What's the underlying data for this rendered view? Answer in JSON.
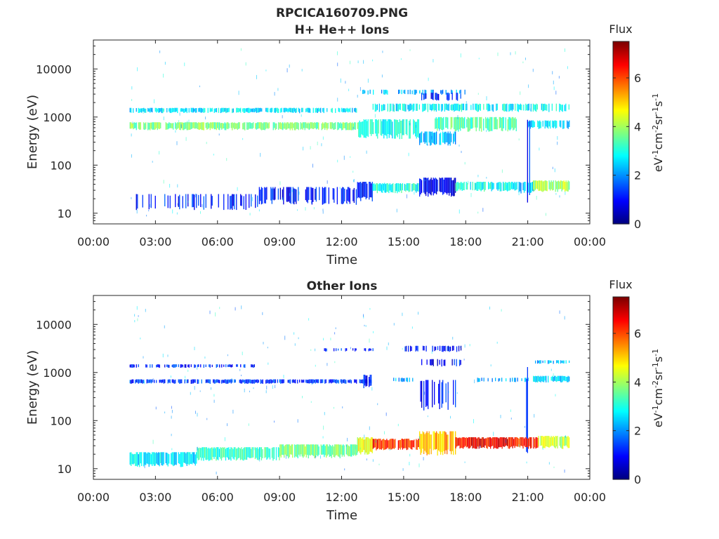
{
  "figure": {
    "title": "RPCICA160709.PNG"
  },
  "colorbar": {
    "label": "Flux",
    "units_parts": [
      "eV",
      "-1",
      "cm",
      "-2",
      "sr",
      "-1",
      "s",
      "-1"
    ],
    "range": [
      0,
      7.5
    ],
    "ticks": [
      0,
      2,
      4,
      6
    ],
    "colormap": "jet"
  },
  "chart_data": [
    {
      "type": "heatmap",
      "title": "H+ He++ Ions",
      "xlabel": "Time",
      "ylabel": "Energy (eV)",
      "yscale": "log",
      "xlim": [
        "00:00",
        "24:00"
      ],
      "ylim": [
        6,
        40000
      ],
      "xticks": [
        "00:00",
        "03:00",
        "06:00",
        "09:00",
        "12:00",
        "15:00",
        "18:00",
        "21:00",
        "00:00"
      ],
      "yticks": [
        10,
        100,
        1000,
        10000
      ],
      "ytick_labels": [
        "10",
        "100",
        "1000",
        "10000"
      ],
      "colorbar_label": "Flux",
      "data_span": [
        "01:45",
        "23:00"
      ],
      "bands": [
        {
          "t_start": "01:45",
          "t_end": "12:45",
          "e_low": 1250,
          "e_high": 1550,
          "flux": 2.6,
          "density": 0.75
        },
        {
          "t_start": "01:45",
          "t_end": "12:45",
          "e_low": 560,
          "e_high": 780,
          "flux": 3.7,
          "density": 0.9
        },
        {
          "t_start": "12:45",
          "t_end": "15:45",
          "e_low": 400,
          "e_high": 900,
          "flux": 2.9,
          "density": 0.85
        },
        {
          "t_start": "15:45",
          "t_end": "17:30",
          "e_low": 280,
          "e_high": 500,
          "flux": 2.3,
          "density": 0.9
        },
        {
          "t_start": "16:30",
          "t_end": "20:30",
          "e_low": 550,
          "e_high": 1000,
          "flux": 3.4,
          "density": 0.85
        },
        {
          "t_start": "21:00",
          "t_end": "23:00",
          "e_low": 600,
          "e_high": 850,
          "flux": 2.5,
          "density": 0.7
        },
        {
          "t_start": "13:30",
          "t_end": "23:00",
          "e_low": 1350,
          "e_high": 1900,
          "flux": 2.8,
          "density": 0.7
        },
        {
          "t_start": "13:00",
          "t_end": "18:00",
          "e_low": 3000,
          "e_high": 3700,
          "flux": 2.3,
          "density": 0.35
        },
        {
          "t_start": "15:45",
          "t_end": "17:45",
          "e_low": 2300,
          "e_high": 3200,
          "flux": 1.2,
          "density": 0.5
        },
        {
          "t_start": "01:45",
          "t_end": "08:00",
          "e_low": 13,
          "e_high": 25,
          "flux": 1.2,
          "density": 0.35
        },
        {
          "t_start": "08:00",
          "t_end": "12:45",
          "e_low": 17,
          "e_high": 35,
          "flux": 1.1,
          "density": 0.6
        },
        {
          "t_start": "12:45",
          "t_end": "13:30",
          "e_low": 20,
          "e_high": 45,
          "flux": 1.0,
          "density": 0.9
        },
        {
          "t_start": "13:30",
          "t_end": "15:45",
          "e_low": 28,
          "e_high": 42,
          "flux": 3.0,
          "density": 0.9
        },
        {
          "t_start": "15:45",
          "t_end": "17:30",
          "e_low": 25,
          "e_high": 55,
          "flux": 0.8,
          "density": 0.95
        },
        {
          "t_start": "17:30",
          "t_end": "20:30",
          "e_low": 30,
          "e_high": 45,
          "flux": 3.0,
          "density": 0.85
        },
        {
          "t_start": "20:30",
          "t_end": "21:15",
          "e_low": 28,
          "e_high": 45,
          "flux": 2.2,
          "density": 0.7
        },
        {
          "t_start": "21:15",
          "t_end": "23:00",
          "e_low": 30,
          "e_high": 48,
          "flux": 4.0,
          "density": 0.95
        },
        {
          "t_start": "20:55",
          "t_end": "21:10",
          "e_low": 25,
          "e_high": 1200,
          "flux": 1.3,
          "density": 0.45
        }
      ]
    },
    {
      "type": "heatmap",
      "title": "Other Ions",
      "xlabel": "Time",
      "ylabel": "Energy (eV)",
      "yscale": "log",
      "xlim": [
        "00:00",
        "24:00"
      ],
      "ylim": [
        6,
        40000
      ],
      "xticks": [
        "00:00",
        "03:00",
        "06:00",
        "09:00",
        "12:00",
        "15:00",
        "18:00",
        "21:00",
        "00:00"
      ],
      "yticks": [
        10,
        100,
        1000,
        10000
      ],
      "ytick_labels": [
        "10",
        "100",
        "1000",
        "10000"
      ],
      "colorbar_label": "Flux",
      "data_span": [
        "01:45",
        "23:00"
      ],
      "bands": [
        {
          "t_start": "01:45",
          "t_end": "08:00",
          "e_low": 1280,
          "e_high": 1480,
          "flux": 1.2,
          "density": 0.45
        },
        {
          "t_start": "01:45",
          "t_end": "13:30",
          "e_low": 600,
          "e_high": 720,
          "flux": 1.3,
          "density": 0.8
        },
        {
          "t_start": "13:00",
          "t_end": "13:30",
          "e_low": 480,
          "e_high": 900,
          "flux": 1.1,
          "density": 0.6
        },
        {
          "t_start": "11:00",
          "t_end": "13:30",
          "e_low": 2800,
          "e_high": 3200,
          "flux": 1.2,
          "density": 0.3
        },
        {
          "t_start": "15:00",
          "t_end": "17:45",
          "e_low": 2800,
          "e_high": 3600,
          "flux": 1.0,
          "density": 0.45
        },
        {
          "t_start": "15:45",
          "t_end": "17:45",
          "e_low": 1400,
          "e_high": 1900,
          "flux": 1.0,
          "density": 0.4
        },
        {
          "t_start": "15:45",
          "t_end": "17:30",
          "e_low": 200,
          "e_high": 700,
          "flux": 1.0,
          "density": 0.3
        },
        {
          "t_start": "14:30",
          "t_end": "15:30",
          "e_low": 650,
          "e_high": 780,
          "flux": 2.2,
          "density": 0.6
        },
        {
          "t_start": "18:30",
          "t_end": "21:00",
          "e_low": 650,
          "e_high": 780,
          "flux": 2.2,
          "density": 0.5
        },
        {
          "t_start": "21:15",
          "t_end": "23:00",
          "e_low": 1550,
          "e_high": 1800,
          "flux": 2.4,
          "density": 0.7
        },
        {
          "t_start": "21:15",
          "t_end": "23:00",
          "e_low": 650,
          "e_high": 850,
          "flux": 2.5,
          "density": 0.8
        },
        {
          "t_start": "20:55",
          "t_end": "21:10",
          "e_low": 30,
          "e_high": 1300,
          "flux": 1.3,
          "density": 0.5
        },
        {
          "t_start": "01:45",
          "t_end": "05:00",
          "e_low": 12,
          "e_high": 22,
          "flux": 2.6,
          "density": 0.95
        },
        {
          "t_start": "05:00",
          "t_end": "09:00",
          "e_low": 16,
          "e_high": 28,
          "flux": 3.2,
          "density": 0.95
        },
        {
          "t_start": "09:00",
          "t_end": "12:45",
          "e_low": 18,
          "e_high": 32,
          "flux": 3.6,
          "density": 0.95
        },
        {
          "t_start": "12:45",
          "t_end": "13:30",
          "e_low": 22,
          "e_high": 45,
          "flux": 4.5,
          "density": 0.95
        },
        {
          "t_start": "13:30",
          "t_end": "15:45",
          "e_low": 26,
          "e_high": 42,
          "flux": 6.2,
          "density": 0.95
        },
        {
          "t_start": "15:45",
          "t_end": "17:30",
          "e_low": 22,
          "e_high": 60,
          "flux": 5.2,
          "density": 0.95
        },
        {
          "t_start": "17:30",
          "t_end": "20:30",
          "e_low": 28,
          "e_high": 45,
          "flux": 6.6,
          "density": 0.95
        },
        {
          "t_start": "20:30",
          "t_end": "21:30",
          "e_low": 28,
          "e_high": 45,
          "flux": 6.3,
          "density": 0.9
        },
        {
          "t_start": "21:30",
          "t_end": "23:00",
          "e_low": 28,
          "e_high": 48,
          "flux": 4.2,
          "density": 0.95
        }
      ]
    }
  ]
}
